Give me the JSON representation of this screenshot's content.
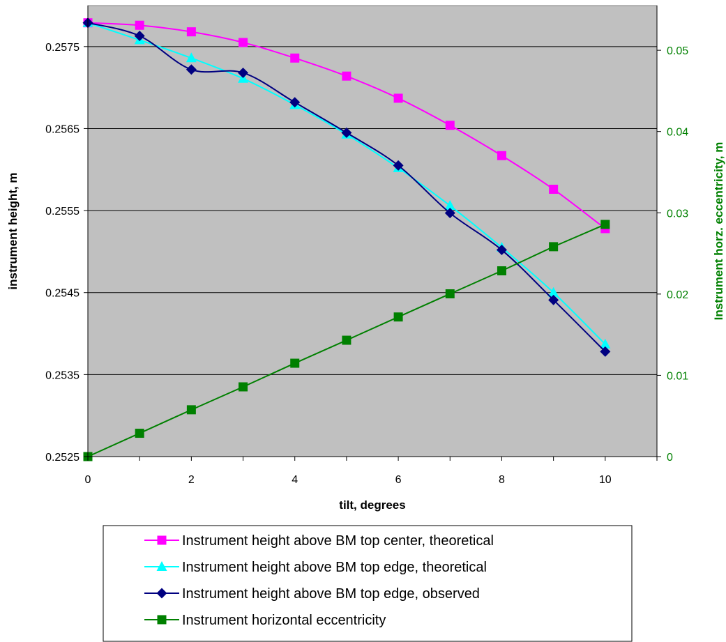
{
  "chart_data": {
    "type": "line",
    "xlabel": "tilt, degrees",
    "ylabel": "instrument height, m",
    "y2label": "Instrument horz. eccentricity, m",
    "xlim": [
      0,
      11
    ],
    "ylim": [
      0.2525,
      0.258
    ],
    "y2lim": [
      0,
      0.0555
    ],
    "x_ticks": [
      "0",
      "2",
      "4",
      "6",
      "8",
      "10"
    ],
    "y_ticks": [
      "0.2525",
      "0.2535",
      "0.2545",
      "0.2555",
      "0.2565",
      "0.2575"
    ],
    "y2_ticks": [
      "0",
      "0.01",
      "0.02",
      "0.03",
      "0.04",
      "0.05"
    ],
    "plot_background": "#c0c0c0",
    "grid": "horizontal",
    "legend_position": "bottom",
    "series": [
      {
        "name": "Instrument height above BM top center, theoretical",
        "axis": "left",
        "color": "#ff00ff",
        "marker": "square",
        "smooth": true,
        "x": [
          0,
          1,
          2,
          3,
          4,
          5,
          6,
          7,
          8,
          9,
          10
        ],
        "y": [
          0.25779,
          0.25776,
          0.25768,
          0.25755,
          0.25736,
          0.25714,
          0.25687,
          0.25654,
          0.25617,
          0.25576,
          0.25528
        ]
      },
      {
        "name": "Instrument height above BM top edge, theoretical",
        "axis": "left",
        "color": "#00ffff",
        "marker": "triangle",
        "smooth": true,
        "x": [
          0,
          1,
          2,
          3,
          4,
          5,
          6,
          7,
          8,
          9,
          10
        ],
        "y": [
          0.25779,
          0.25758,
          0.25736,
          0.25711,
          0.25679,
          0.25643,
          0.25602,
          0.25556,
          0.25505,
          0.2545,
          0.25387
        ]
      },
      {
        "name": "Instrument height above BM top edge, observed",
        "axis": "left",
        "color": "#000080",
        "marker": "diamond",
        "smooth": true,
        "x": [
          0,
          1,
          2,
          3,
          4,
          5,
          6,
          7,
          8,
          9,
          10
        ],
        "y": [
          0.25779,
          0.25763,
          0.25722,
          0.25718,
          0.25682,
          0.25645,
          0.25605,
          0.25547,
          0.25502,
          0.25441,
          0.25378
        ]
      },
      {
        "name": "Instrument horizontal eccentricity",
        "axis": "right",
        "color": "#008000",
        "marker": "square",
        "smooth": false,
        "x": [
          0,
          1,
          2,
          3,
          4,
          5,
          6,
          7,
          8,
          9,
          10
        ],
        "y": [
          0,
          0.00287,
          0.00576,
          0.00858,
          0.01149,
          0.01432,
          0.01718,
          0.02003,
          0.02286,
          0.02583,
          0.02857
        ]
      }
    ]
  }
}
